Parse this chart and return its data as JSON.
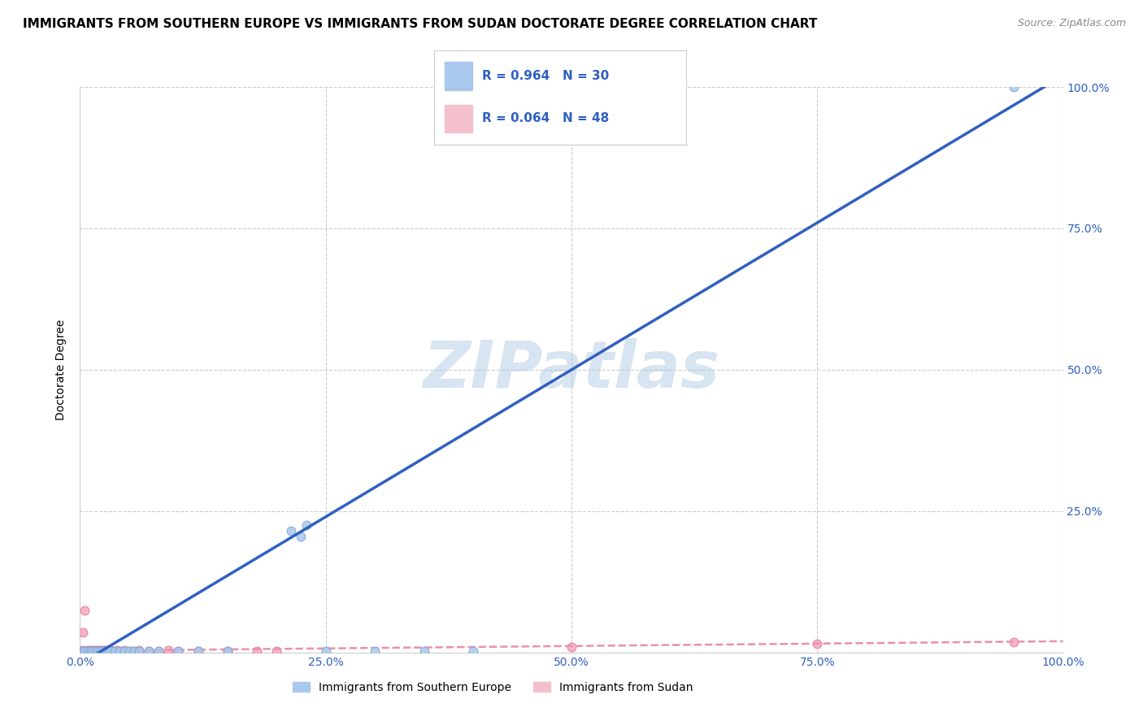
{
  "title": "IMMIGRANTS FROM SOUTHERN EUROPE VS IMMIGRANTS FROM SUDAN DOCTORATE DEGREE CORRELATION CHART",
  "source": "Source: ZipAtlas.com",
  "ylabel": "Doctorate Degree",
  "xlim": [
    0,
    100
  ],
  "ylim": [
    0,
    100
  ],
  "background_color": "#ffffff",
  "grid_color": "#cccccc",
  "watermark": "ZIPatlas",
  "watermark_color": "#a8c4e0",
  "series_blue": {
    "label": "Immigrants from Southern Europe",
    "R": 0.964,
    "N": 30,
    "color": "#aac8ed",
    "edge_color": "#7aaad4",
    "points": [
      [
        0.3,
        0.2
      ],
      [
        0.5,
        0.3
      ],
      [
        0.8,
        0.2
      ],
      [
        1.0,
        0.3
      ],
      [
        1.2,
        0.2
      ],
      [
        1.5,
        0.3
      ],
      [
        1.8,
        0.2
      ],
      [
        2.0,
        0.3
      ],
      [
        2.3,
        0.2
      ],
      [
        2.5,
        0.3
      ],
      [
        3.0,
        0.2
      ],
      [
        3.5,
        0.2
      ],
      [
        4.0,
        0.3
      ],
      [
        4.5,
        0.2
      ],
      [
        5.0,
        0.3
      ],
      [
        5.5,
        0.2
      ],
      [
        6.0,
        0.3
      ],
      [
        7.0,
        0.2
      ],
      [
        8.0,
        0.3
      ],
      [
        10.0,
        0.3
      ],
      [
        12.0,
        0.2
      ],
      [
        21.5,
        21.5
      ],
      [
        22.5,
        20.5
      ],
      [
        23.0,
        22.5
      ],
      [
        25.0,
        0.3
      ],
      [
        30.0,
        0.3
      ],
      [
        35.0,
        0.2
      ],
      [
        40.0,
        0.3
      ],
      [
        95.0,
        100.0
      ],
      [
        15.0,
        0.3
      ]
    ],
    "regression_color": "#3060c0",
    "regression_line": [
      [
        0,
        -2
      ],
      [
        100,
        102
      ]
    ],
    "line_style": "-",
    "line_width": 2.5
  },
  "series_pink": {
    "label": "Immigrants from Sudan",
    "R": 0.064,
    "N": 48,
    "color": "#f4a8bc",
    "edge_color": "#e07898",
    "points": [
      [
        0.2,
        0.4
      ],
      [
        0.3,
        3.5
      ],
      [
        0.4,
        0.3
      ],
      [
        0.5,
        7.5
      ],
      [
        0.6,
        0.3
      ],
      [
        0.7,
        0.4
      ],
      [
        0.8,
        0.3
      ],
      [
        0.9,
        0.4
      ],
      [
        1.0,
        0.3
      ],
      [
        1.1,
        0.4
      ],
      [
        1.2,
        0.3
      ],
      [
        1.3,
        0.4
      ],
      [
        1.4,
        0.3
      ],
      [
        1.5,
        0.4
      ],
      [
        1.6,
        0.3
      ],
      [
        1.7,
        0.4
      ],
      [
        1.8,
        0.3
      ],
      [
        1.9,
        0.4
      ],
      [
        2.0,
        0.3
      ],
      [
        2.1,
        0.4
      ],
      [
        2.2,
        0.3
      ],
      [
        2.3,
        0.4
      ],
      [
        2.4,
        0.3
      ],
      [
        2.5,
        0.4
      ],
      [
        2.6,
        0.3
      ],
      [
        2.7,
        0.4
      ],
      [
        2.8,
        0.3
      ],
      [
        2.9,
        0.4
      ],
      [
        3.0,
        0.3
      ],
      [
        3.2,
        0.4
      ],
      [
        3.5,
        0.3
      ],
      [
        3.8,
        0.4
      ],
      [
        4.0,
        0.3
      ],
      [
        4.5,
        0.4
      ],
      [
        5.0,
        0.3
      ],
      [
        5.5,
        0.3
      ],
      [
        6.0,
        0.4
      ],
      [
        7.0,
        0.3
      ],
      [
        8.0,
        0.3
      ],
      [
        9.0,
        0.4
      ],
      [
        10.0,
        0.3
      ],
      [
        12.0,
        0.3
      ],
      [
        15.0,
        0.3
      ],
      [
        18.0,
        0.3
      ],
      [
        20.0,
        0.3
      ],
      [
        50.0,
        1.0
      ],
      [
        75.0,
        1.5
      ],
      [
        95.0,
        1.8
      ]
    ],
    "regression_color": "#e890b0",
    "regression_line": [
      [
        0,
        0.3
      ],
      [
        100,
        2.0
      ]
    ],
    "line_style": "--",
    "line_width": 1.8
  },
  "legend_blue_color": "#aac8ed",
  "legend_pink_color": "#f4c0cc",
  "legend_text_color": "#3060c0",
  "title_fontsize": 11,
  "axis_label_fontsize": 10,
  "tick_fontsize": 10,
  "tick_color": "#3060c0",
  "marker_size": 60
}
